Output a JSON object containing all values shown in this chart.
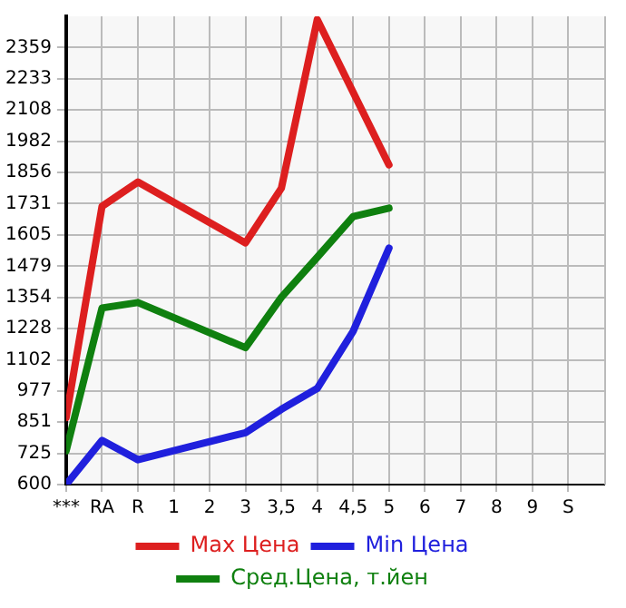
{
  "chart_data": {
    "type": "line",
    "categories": [
      "***",
      "RA",
      "R",
      "1",
      "2",
      "3",
      "3,5",
      "4",
      "4,5",
      "5",
      "6",
      "7",
      "8",
      "9",
      "S"
    ],
    "series": [
      {
        "name": "Max Цена",
        "color": "#dd1f1f",
        "values": [
          870,
          1720,
          1818,
          null,
          null,
          1573,
          1793,
          2472,
          null,
          1887,
          null,
          null,
          null,
          null,
          null
        ]
      },
      {
        "name": "Min Цена",
        "color": "#2020dd",
        "values": [
          600,
          778,
          700,
          null,
          null,
          809,
          903,
          987,
          1217,
          1552,
          null,
          null,
          null,
          null,
          null
        ]
      },
      {
        "name": "Сред.Цена, т.йен",
        "color": "#0f800f",
        "values": [
          736,
          1311,
          1333,
          null,
          null,
          1151,
          1354,
          1515,
          1679,
          1713,
          null,
          null,
          null,
          null,
          null
        ]
      }
    ],
    "ylim": [
      600,
      2485
    ],
    "yticks": [
      600,
      725,
      851,
      977,
      1102,
      1228,
      1354,
      1479,
      1605,
      1731,
      1856,
      1982,
      2108,
      2233,
      2359
    ],
    "grid": true,
    "legend": "bottom",
    "marker": "none",
    "line_style": "solid"
  }
}
